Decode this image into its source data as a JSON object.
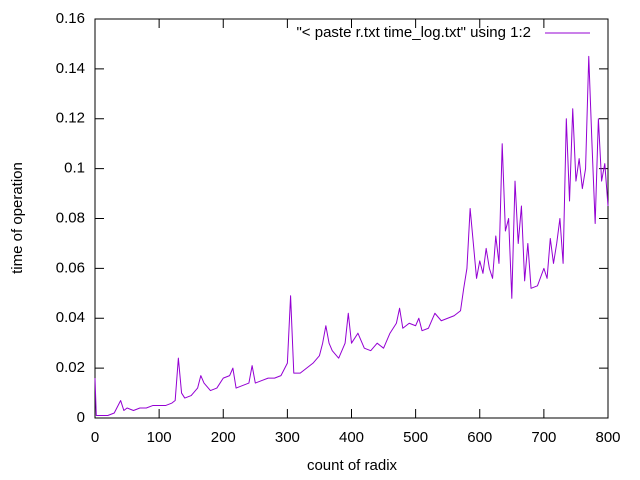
{
  "chart_data": {
    "type": "line",
    "xlabel": "count of radix",
    "ylabel": "time of operation",
    "x": [
      0,
      2,
      10,
      20,
      30,
      40,
      45,
      50,
      60,
      70,
      80,
      90,
      100,
      110,
      120,
      125,
      130,
      135,
      140,
      150,
      160,
      165,
      170,
      180,
      190,
      200,
      210,
      215,
      220,
      230,
      240,
      245,
      250,
      260,
      270,
      280,
      290,
      300,
      305,
      310,
      320,
      330,
      340,
      350,
      355,
      360,
      365,
      370,
      380,
      390,
      395,
      400,
      410,
      420,
      430,
      440,
      450,
      460,
      470,
      475,
      480,
      490,
      500,
      505,
      510,
      520,
      530,
      540,
      550,
      560,
      570,
      575,
      580,
      585,
      590,
      595,
      600,
      605,
      610,
      615,
      620,
      625,
      630,
      635,
      640,
      645,
      650,
      655,
      660,
      665,
      670,
      675,
      680,
      690,
      700,
      705,
      710,
      715,
      720,
      725,
      730,
      735,
      740,
      745,
      750,
      755,
      760,
      765,
      770,
      775,
      780,
      785,
      790,
      795,
      800
    ],
    "series": [
      {
        "name": "\"< paste r.txt time_log.txt\" using 1:2",
        "color": "#9400d3",
        "values": [
          0.016,
          0.001,
          0.001,
          0.001,
          0.002,
          0.007,
          0.003,
          0.004,
          0.003,
          0.004,
          0.004,
          0.005,
          0.005,
          0.005,
          0.006,
          0.007,
          0.024,
          0.01,
          0.008,
          0.009,
          0.012,
          0.017,
          0.014,
          0.011,
          0.012,
          0.016,
          0.017,
          0.02,
          0.012,
          0.013,
          0.014,
          0.021,
          0.014,
          0.015,
          0.016,
          0.016,
          0.017,
          0.022,
          0.049,
          0.018,
          0.018,
          0.02,
          0.022,
          0.025,
          0.03,
          0.037,
          0.03,
          0.027,
          0.024,
          0.03,
          0.042,
          0.03,
          0.034,
          0.028,
          0.027,
          0.03,
          0.028,
          0.034,
          0.038,
          0.044,
          0.036,
          0.038,
          0.037,
          0.04,
          0.035,
          0.036,
          0.042,
          0.039,
          0.04,
          0.041,
          0.043,
          0.052,
          0.06,
          0.084,
          0.07,
          0.056,
          0.063,
          0.058,
          0.068,
          0.06,
          0.056,
          0.073,
          0.062,
          0.11,
          0.075,
          0.08,
          0.048,
          0.095,
          0.07,
          0.085,
          0.055,
          0.07,
          0.052,
          0.053,
          0.06,
          0.056,
          0.072,
          0.062,
          0.07,
          0.08,
          0.062,
          0.12,
          0.087,
          0.124,
          0.095,
          0.104,
          0.092,
          0.1,
          0.145,
          0.11,
          0.078,
          0.12,
          0.095,
          0.102,
          0.085
        ]
      }
    ],
    "xlim": [
      0,
      800
    ],
    "xticks": [
      0,
      100,
      200,
      300,
      400,
      500,
      600,
      700,
      800
    ],
    "ylim": [
      0,
      0.16
    ],
    "yticks": [
      0,
      0.02,
      0.04,
      0.06,
      0.08,
      0.1,
      0.12,
      0.14,
      0.16
    ],
    "legend": "upper right",
    "grid": false
  }
}
